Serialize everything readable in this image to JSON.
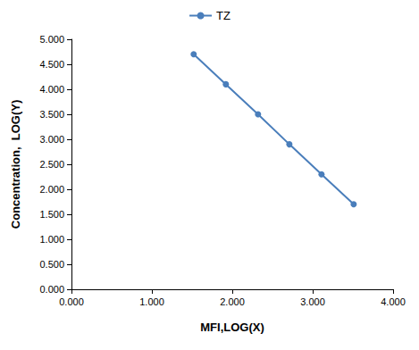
{
  "chart_data": {
    "type": "line",
    "x_label": "MFI,LOG(X)",
    "y_label": "Concentration,  LOG(Y)",
    "x": [
      1.52,
      1.92,
      2.32,
      2.71,
      3.11,
      3.51
    ],
    "series": [
      {
        "name": "TZ",
        "color": "#4a7ebb",
        "marker": "circle",
        "values": [
          4.7,
          4.1,
          3.5,
          2.9,
          2.3,
          1.7
        ]
      }
    ],
    "xlim": [
      0,
      4
    ],
    "xticks": [
      {
        "value": 0,
        "label": "0.000"
      },
      {
        "value": 1,
        "label": "1.000"
      },
      {
        "value": 2,
        "label": "2.000"
      },
      {
        "value": 3,
        "label": "3.000"
      },
      {
        "value": 4,
        "label": "4.000"
      }
    ],
    "ylim": [
      0,
      5
    ],
    "yticks": [
      {
        "value": 0,
        "label": "0.000"
      },
      {
        "value": 0.5,
        "label": "0.500"
      },
      {
        "value": 1,
        "label": "1.000"
      },
      {
        "value": 1.5,
        "label": "1.500"
      },
      {
        "value": 2,
        "label": "2.000"
      },
      {
        "value": 2.5,
        "label": "2.500"
      },
      {
        "value": 3,
        "label": "3.000"
      },
      {
        "value": 3.5,
        "label": "3.500"
      },
      {
        "value": 4,
        "label": "4.000"
      },
      {
        "value": 4.5,
        "label": "4.500"
      },
      {
        "value": 5,
        "label": "5.000"
      }
    ],
    "grid": false,
    "legend": "top"
  }
}
